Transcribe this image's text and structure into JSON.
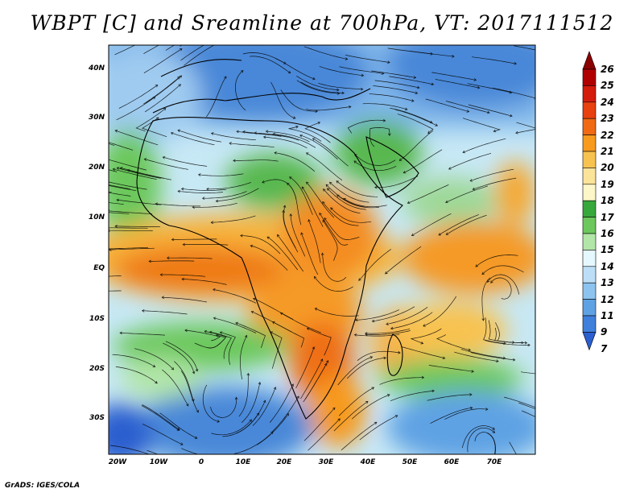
{
  "title": "WBPT [C] and Sreamline at 700hPa, VT: 2017111512",
  "footer": "GrADS: IGES/COLA",
  "map": {
    "lat_labels": [
      "40N",
      "30N",
      "20N",
      "10N",
      "EQ",
      "10S",
      "20S",
      "30S"
    ],
    "lon_labels": [
      "20W",
      "10W",
      "0",
      "10E",
      "20E",
      "30E",
      "40E",
      "50E",
      "60E",
      "70E"
    ]
  },
  "colorbar": {
    "labels": [
      "26",
      "25",
      "24",
      "23",
      "22",
      "21",
      "20",
      "19",
      "18",
      "17",
      "16",
      "15",
      "14",
      "13",
      "12",
      "11",
      "9",
      "7"
    ],
    "colors": [
      "#8b0000",
      "#b00000",
      "#d41c0c",
      "#e8400f",
      "#f06a14",
      "#f79a1e",
      "#f8c250",
      "#fbe39a",
      "#fdf6c8",
      "#37a83c",
      "#6cc85c",
      "#b2e6a8",
      "#e6f8ff",
      "#bcdff7",
      "#8cc4ef",
      "#5fa2e4",
      "#3f80dc",
      "#2a5fcf"
    ]
  }
}
